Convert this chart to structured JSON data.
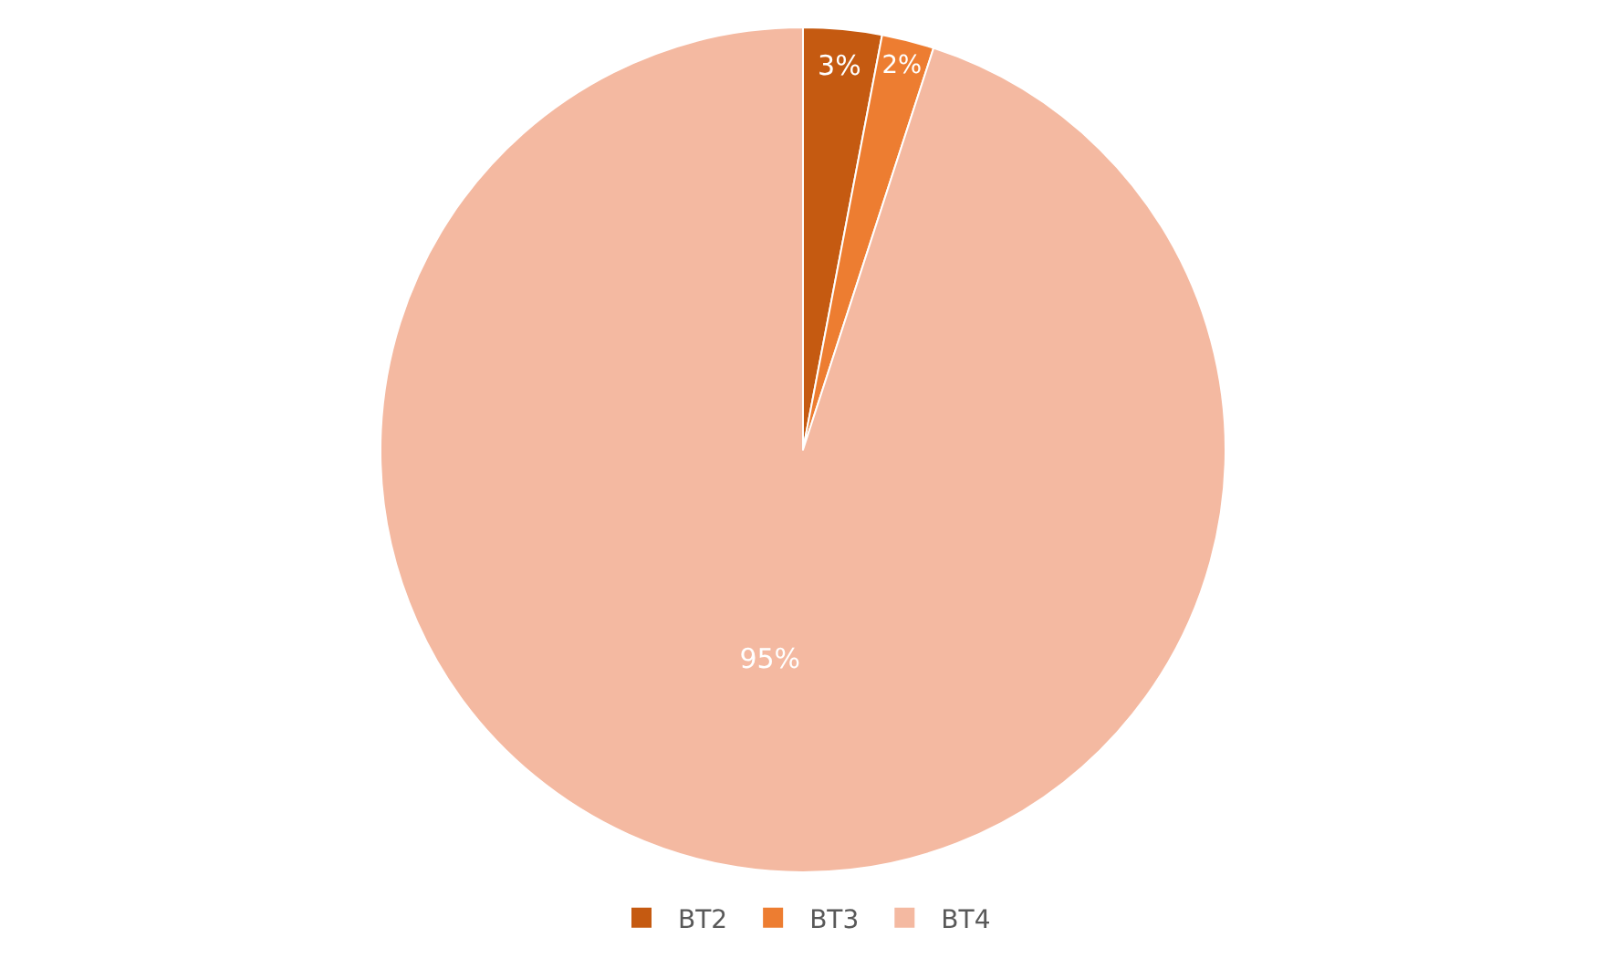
{
  "chart_data": {
    "type": "pie",
    "categories": [
      "BT2",
      "BT3",
      "BT4"
    ],
    "values": [
      3,
      2,
      95
    ],
    "colors": [
      "#c55a11",
      "#ed7d31",
      "#f4b9a1"
    ],
    "value_labels": [
      "3%",
      "2%",
      "95%"
    ],
    "legend": "bottom"
  }
}
